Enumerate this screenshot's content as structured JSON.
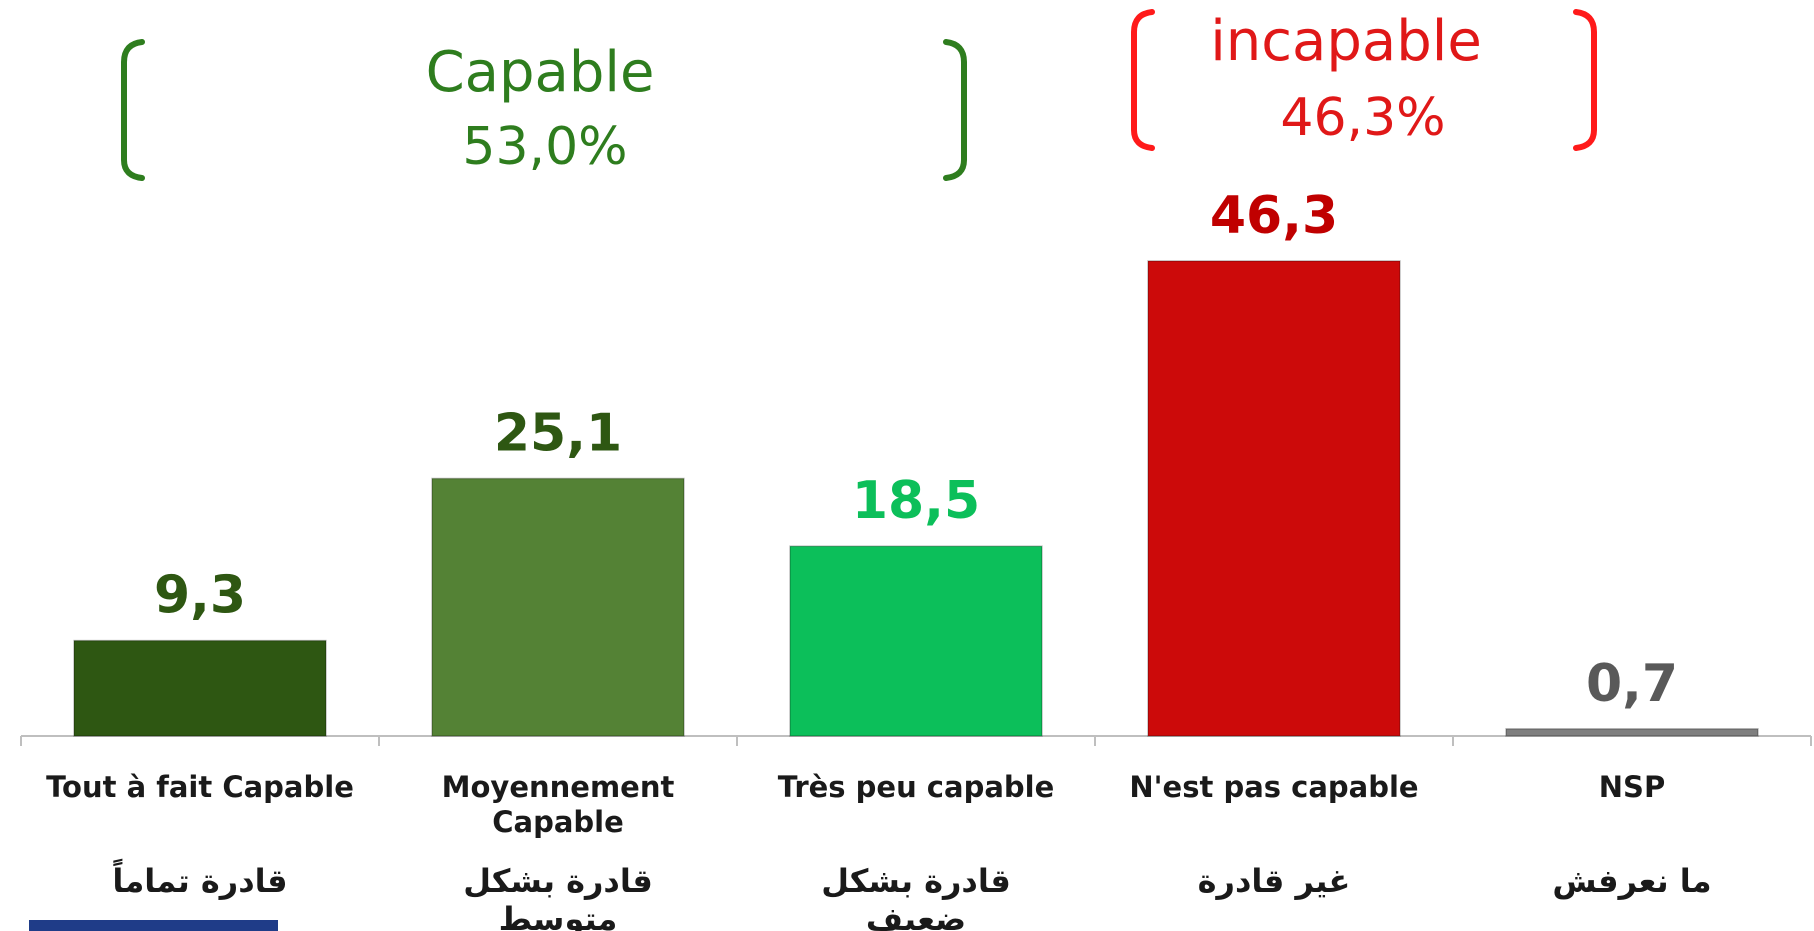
{
  "chart_data": {
    "type": "bar",
    "categories": [
      "Tout à fait Capable",
      "Moyennement Capable",
      "Très peu capable",
      "N'est pas capable",
      "NSP"
    ],
    "categories_ar": [
      "قادرة تماماً",
      "قادرة بشكل متوسط",
      "قادرة بشكل ضعيف",
      "غير قادرة",
      "ما نعرفش"
    ],
    "values": [
      9.3,
      25.1,
      18.5,
      46.3,
      0.7
    ],
    "value_labels": [
      "9,3",
      "25,1",
      "18,5",
      "46,3",
      "0,7"
    ],
    "colors": [
      "#2e5712",
      "#548235",
      "#0cbf5a",
      "#cc0a0a",
      "#7f7f7f"
    ],
    "label_colors": [
      "#2e5712",
      "#2e5712",
      "#0cbf5a",
      "#c00000",
      "#595959"
    ],
    "ylim": [
      0,
      50
    ],
    "annotations": [
      {
        "title": "Capable",
        "value": "53,0%",
        "color": "#2e7d1e"
      },
      {
        "title": "incapable",
        "value": "46,3%",
        "color": "#e01818"
      }
    ]
  }
}
